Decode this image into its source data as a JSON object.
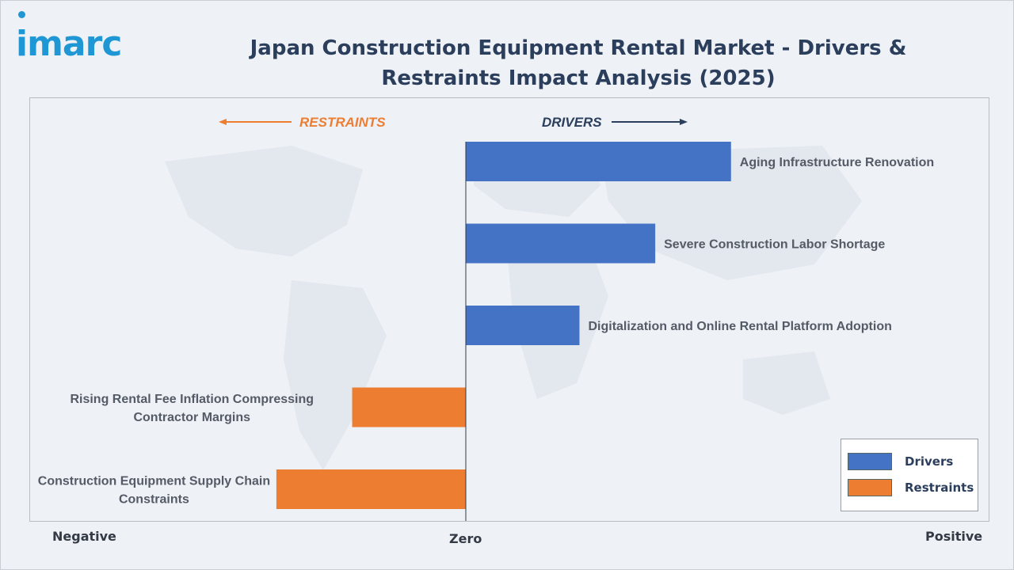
{
  "brand": {
    "logo_text": "imarc"
  },
  "header": {
    "title": "Japan Construction Equipment Rental Market - Drivers & Restraints Impact Analysis (2025)"
  },
  "directions": {
    "restraints": "RESTRAINTS",
    "drivers": "DRIVERS"
  },
  "axis": {
    "negative": "Negative",
    "zero": "Zero",
    "positive": "Positive"
  },
  "legend": {
    "drivers": "Drivers",
    "restraints": "Restraints"
  },
  "colors": {
    "drivers": "#4472c4",
    "restraints": "#ed7d31",
    "label": "#555b66",
    "title": "#2b3e5c",
    "brand": "#1e97d4"
  },
  "chart_data": {
    "type": "bar",
    "orientation": "horizontal",
    "title": "Japan Construction Equipment Rental Market - Drivers & Restraints Impact Analysis (2025)",
    "categories": [
      "Aging Infrastructure Renovation",
      "Severe Construction Labor Shortage",
      "Digitalization and Online Rental Platform Adoption",
      "Rising Rental Fee Inflation Compressing Contractor Margins",
      "Construction Equipment Supply Chain Constraints"
    ],
    "series": [
      {
        "name": "Drivers",
        "values": [
          3.5,
          2.5,
          1.5,
          null,
          null
        ]
      },
      {
        "name": "Restraints",
        "values": [
          null,
          null,
          null,
          -1.5,
          -2.5
        ]
      }
    ],
    "xlim": [
      -5.75,
      6.9
    ],
    "grid": false,
    "legend_position": "bottom-right"
  }
}
